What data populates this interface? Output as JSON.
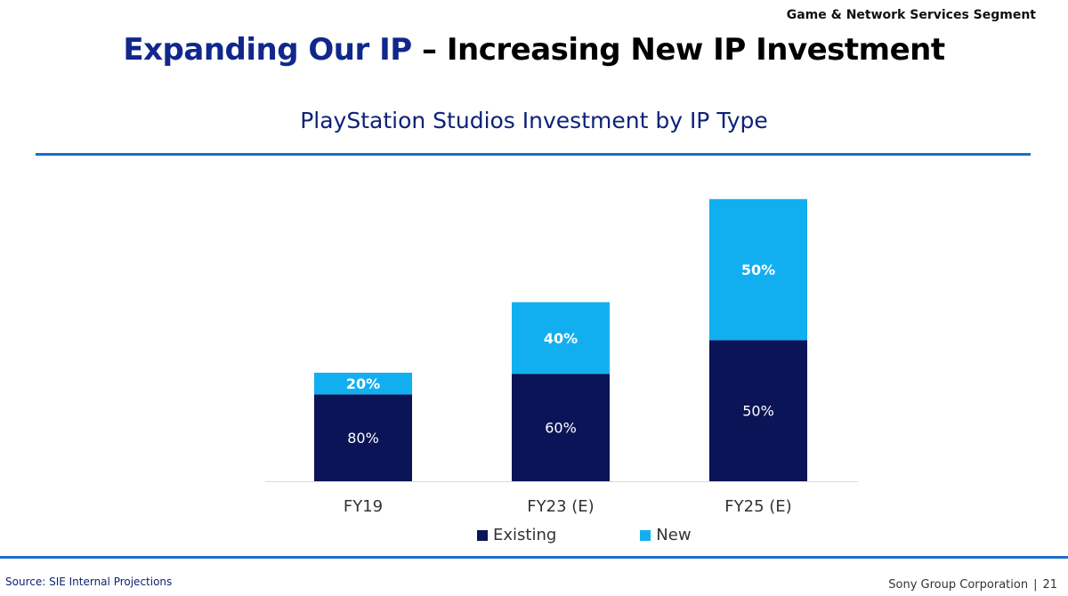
{
  "header": {
    "segment": "Game & Network Services Segment",
    "title_part1": "Expanding Our IP",
    "title_part2": "– Increasing New IP Investment"
  },
  "chart_data": {
    "type": "bar",
    "stacked": true,
    "title": "PlayStation Studios Investment by IP Type",
    "categories": [
      "FY19",
      "FY23 (E)",
      "FY25 (E)"
    ],
    "relative_totals": [
      1.0,
      1.65,
      2.6
    ],
    "series": [
      {
        "name": "Existing",
        "color": "#0b1456",
        "values": [
          80,
          60,
          50
        ],
        "labels": [
          "80%",
          "60%",
          "50%"
        ]
      },
      {
        "name": "New",
        "color": "#12aff0",
        "values": [
          20,
          40,
          50
        ],
        "labels": [
          "20%",
          "40%",
          "50%"
        ]
      }
    ],
    "legend": [
      "Existing",
      "New"
    ],
    "legend_position": "bottom",
    "grid": false,
    "xlabel": "",
    "ylabel": ""
  },
  "footer": {
    "source": "Source: SIE Internal Projections",
    "company": "Sony Group Corporation",
    "separator": "|",
    "page": "21"
  }
}
